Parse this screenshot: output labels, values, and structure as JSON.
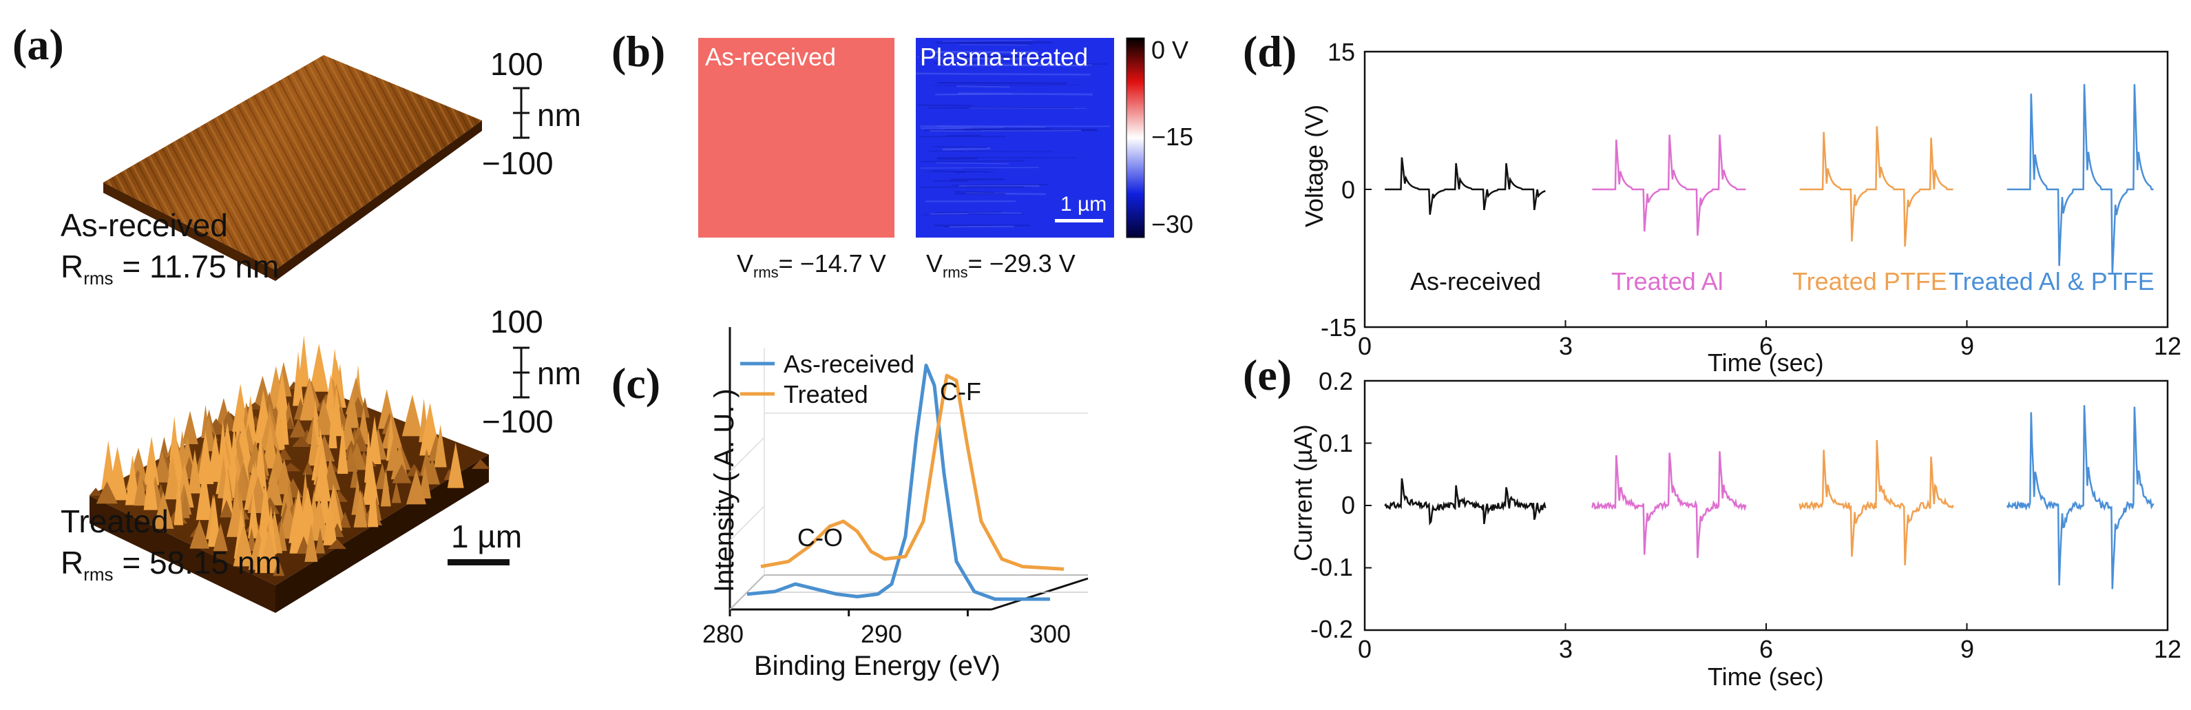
{
  "panels": {
    "a": {
      "letter": "(a)",
      "top_scale": {
        "max": "100",
        "unit": "nm",
        "min": "−100"
      },
      "bottom_scale": {
        "max": "100",
        "unit": "nm",
        "min": "−100"
      },
      "top_label": "As-received",
      "top_rms": "R",
      "top_rms_sub": "rms",
      "top_rms_value": " = 11.75 nm",
      "bottom_label": "Treated",
      "bottom_rms": "R",
      "bottom_rms_sub": "rms",
      "bottom_rms_value": " = 58.15 nm",
      "scalebar": "1 µm",
      "colors": {
        "surface_dark": "#5a2d06",
        "surface_light": "#d79a55"
      }
    },
    "b": {
      "letter": "(b)",
      "left_label": "As-received",
      "right_label": "Plasma-treated",
      "left_color": "#f26b66",
      "right_color": "#1e2ee8",
      "colorbar_ticks": [
        "0 V",
        "−15",
        "−30"
      ],
      "scalebar": "1 µm",
      "left_v": "V",
      "left_v_sub": "rms",
      "left_v_value": "= −14.7 V",
      "right_v": "V",
      "right_v_sub": "rms",
      "right_v_value": "= −29.3 V"
    },
    "c": {
      "letter": "(c)",
      "annotation_cf": "C-F",
      "annotation_co": "C-O"
    },
    "d": {
      "letter": "(d)"
    },
    "e": {
      "letter": "(e)"
    }
  },
  "chart_data": [
    {
      "id": "c",
      "type": "line",
      "title": "",
      "xlabel": "Binding Energy (eV)",
      "ylabel": "Intensity ( A. U. )",
      "xlim": [
        280,
        302
      ],
      "ylim": [
        0,
        1.0
      ],
      "x_ticks": [
        "280",
        "290",
        "300"
      ],
      "legend": "top-left",
      "series": [
        {
          "name": "As-received",
          "color": "#4a90d0",
          "x": [
            280,
            282,
            283.5,
            285,
            286.5,
            288,
            289.5,
            290.5,
            291.5,
            292.3,
            293,
            293.6,
            294.3,
            295.2,
            296.5,
            298,
            300,
            302
          ],
          "y": [
            0.02,
            0.03,
            0.06,
            0.04,
            0.02,
            0.01,
            0.02,
            0.06,
            0.25,
            0.65,
            0.93,
            0.85,
            0.5,
            0.15,
            0.03,
            0.0,
            0.0,
            0.0
          ]
        },
        {
          "name": "Treated",
          "color": "#f0a040",
          "x": [
            280,
            282,
            283.5,
            285,
            286,
            287,
            288,
            289,
            290.5,
            291.8,
            292.8,
            293.5,
            294.2,
            295,
            296,
            297.5,
            299,
            302
          ],
          "y": [
            0.02,
            0.04,
            0.1,
            0.18,
            0.2,
            0.16,
            0.08,
            0.05,
            0.06,
            0.2,
            0.55,
            0.78,
            0.76,
            0.5,
            0.2,
            0.05,
            0.02,
            0.01
          ]
        }
      ]
    },
    {
      "id": "d",
      "type": "line",
      "title": "",
      "xlabel": "Time (sec)",
      "ylabel": "Voltage (V)",
      "xlim": [
        0,
        12
      ],
      "ylim": [
        -15,
        15
      ],
      "x_ticks": [
        "0",
        "3",
        "6",
        "9",
        "12"
      ],
      "y_ticks": [
        "15",
        "0",
        "-15"
      ],
      "series": [
        {
          "name": "As-received",
          "color": "#111111",
          "start": 0.3,
          "end": 2.7,
          "peaks": [
            0.55,
            1.35,
            2.1
          ],
          "pos": 3.8,
          "neg": -3.0
        },
        {
          "name": "Treated Al",
          "color": "#de6fd0",
          "start": 3.4,
          "end": 5.7,
          "peaks": [
            3.75,
            4.55,
            5.3
          ],
          "pos": 6.5,
          "neg": -5.5
        },
        {
          "name": "Treated PTFE",
          "color": "#f0a050",
          "start": 6.5,
          "end": 8.8,
          "peaks": [
            6.85,
            7.65,
            8.45
          ],
          "pos": 7.5,
          "neg": -6.8
        },
        {
          "name": "Treated Al & PTFE",
          "color": "#4a8fd8",
          "start": 9.6,
          "end": 11.8,
          "peaks": [
            9.95,
            10.75,
            11.5
          ],
          "pos": 12.5,
          "neg": -10.0
        }
      ]
    },
    {
      "id": "e",
      "type": "line",
      "title": "",
      "xlabel": "Time (sec)",
      "ylabel": "Current (µA)",
      "xlim": [
        0,
        12
      ],
      "ylim": [
        -0.2,
        0.2
      ],
      "x_ticks": [
        "0",
        "3",
        "6",
        "9",
        "12"
      ],
      "y_ticks": [
        "0.2",
        "0.1",
        "0",
        "-0.1",
        "-0.2"
      ],
      "series": [
        {
          "name": "As-received",
          "color": "#111111",
          "start": 0.3,
          "end": 2.7,
          "peaks": [
            0.55,
            1.35,
            2.1
          ],
          "pos": 0.045,
          "neg": -0.035
        },
        {
          "name": "Treated Al",
          "color": "#de6fd0",
          "start": 3.4,
          "end": 5.7,
          "peaks": [
            3.75,
            4.55,
            5.3
          ],
          "pos": 0.095,
          "neg": -0.09
        },
        {
          "name": "Treated PTFE",
          "color": "#f0a050",
          "start": 6.5,
          "end": 8.8,
          "peaks": [
            6.85,
            7.65,
            8.45
          ],
          "pos": 0.11,
          "neg": -0.1
        },
        {
          "name": "Treated Al & PTFE",
          "color": "#4a8fd8",
          "start": 9.6,
          "end": 11.8,
          "peaks": [
            9.95,
            10.75,
            11.5
          ],
          "pos": 0.175,
          "neg": -0.15
        }
      ]
    }
  ]
}
